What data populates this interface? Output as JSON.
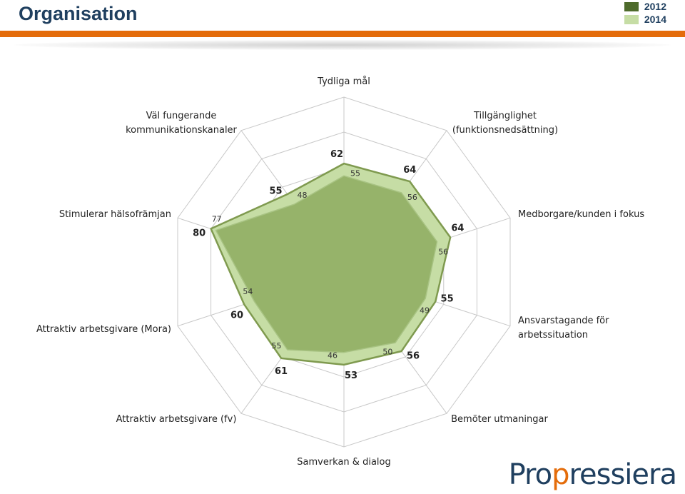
{
  "header": {
    "title": "Organisation"
  },
  "colors": {
    "series_2012": "#4e6b2c",
    "series_2014": "#c6dda5",
    "accent": "#e46c0a",
    "title": "#1f3f5f"
  },
  "legend": [
    {
      "label": "2012",
      "color": "#4e6b2c"
    },
    {
      "label": "2014",
      "color": "#c6dda5"
    }
  ],
  "chart_data": {
    "type": "radar",
    "axes": [
      [
        "Tydliga mål"
      ],
      [
        "Tillgänglighet",
        "(funktionsnedsättning)"
      ],
      [
        "Medborgare/kunden i fokus"
      ],
      [
        "Ansvarstagande för",
        "arbetssituation"
      ],
      [
        "Bemöter utmaningar"
      ],
      [
        "Samverkan & dialog"
      ],
      [
        "Attraktiv arbetsgivare (fv)"
      ],
      [
        "Attraktiv arbetsgivare (Mora)"
      ],
      [
        "Stimulerar hälsofrämjan"
      ],
      [
        "Väl fungerande",
        "kommunikationskanaler"
      ]
    ],
    "range": [
      0,
      100
    ],
    "grid_levels": [
      20,
      40,
      60,
      80,
      100
    ],
    "series": [
      {
        "name": "2012",
        "values": [
          55,
          56,
          56,
          49,
          50,
          46,
          55,
          54,
          77,
          48
        ]
      },
      {
        "name": "2014",
        "values": [
          62,
          64,
          64,
          55,
          56,
          53,
          61,
          60,
          80,
          55
        ]
      }
    ]
  },
  "logo": {
    "text_main": "Pro",
    "text_accent": "p",
    "text_rest": "ressiera"
  }
}
